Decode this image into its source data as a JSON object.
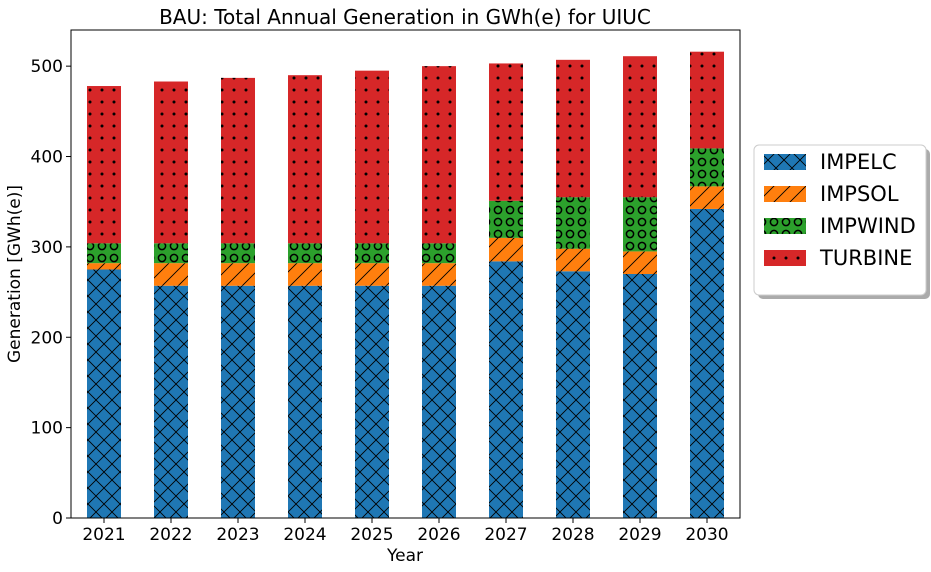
{
  "chart_data": {
    "type": "bar",
    "stacked": true,
    "title": "BAU: Total Annual Generation in GWh(e) for UIUC",
    "xlabel": "Year",
    "ylabel": "Generation [GWh(e)]",
    "ylim": [
      0,
      540
    ],
    "yticks": [
      0,
      100,
      200,
      300,
      400,
      500
    ],
    "grid": false,
    "legend_position": "right",
    "categories": [
      "2021",
      "2022",
      "2023",
      "2024",
      "2025",
      "2026",
      "2027",
      "2028",
      "2029",
      "2030"
    ],
    "series": [
      {
        "name": "IMPELC",
        "color": "#1f77b4",
        "hatch": "cross",
        "values": [
          275,
          257,
          257,
          257,
          257,
          257,
          284,
          273,
          270,
          342
        ]
      },
      {
        "name": "IMPSOL",
        "color": "#ff7f0e",
        "hatch": "slash",
        "values": [
          7,
          25,
          25,
          25,
          25,
          25,
          26,
          25,
          25,
          25
        ]
      },
      {
        "name": "IMPWIND",
        "color": "#2ca02c",
        "hatch": "circle",
        "values": [
          22,
          22,
          22,
          22,
          22,
          22,
          41,
          57,
          60,
          42
        ]
      },
      {
        "name": "TURBINE",
        "color": "#d62728",
        "hatch": "dot",
        "values": [
          174,
          179,
          183,
          186,
          191,
          196,
          152,
          152,
          156,
          107
        ]
      }
    ]
  }
}
